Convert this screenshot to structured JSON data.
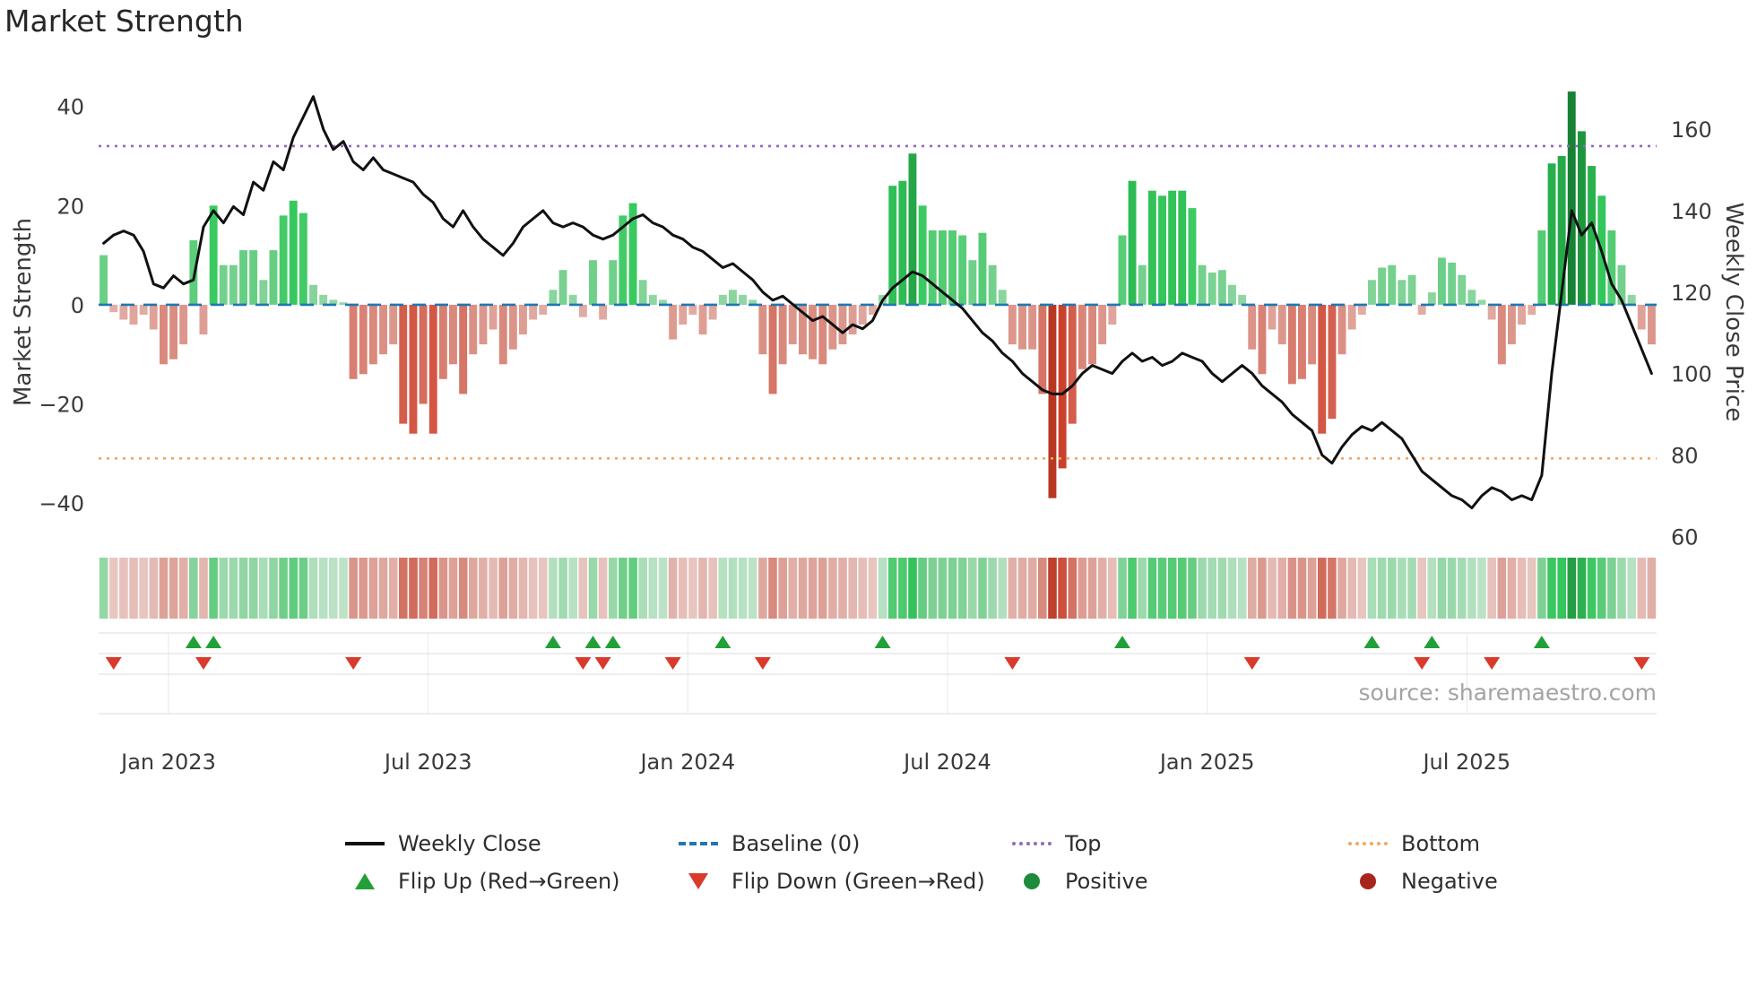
{
  "page_title": "Market Strength",
  "source": "source: sharemaestro.com",
  "colors": {
    "weekly_close_line": "#111111",
    "baseline": "#1f77b4",
    "top": "#9467bd",
    "bottom": "#f0a860",
    "flip_up": "#21a038",
    "flip_down": "#d93a2b",
    "positive_dot": "#1e8a3c",
    "negative_dot": "#a8251e",
    "bar_positive_dark": "#1d7a34",
    "bar_positive_light": "#b7e0b0",
    "bar_negative_dark": "#b03a30",
    "bar_negative_light": "#f5c6bd"
  },
  "legend": {
    "items": [
      {
        "label": "Weekly Close",
        "marker": "black-line"
      },
      {
        "label": "Baseline (0)",
        "marker": "blue-dashed-line"
      },
      {
        "label": "Top",
        "marker": "purple-dotted-line"
      },
      {
        "label": "Bottom",
        "marker": "orange-dotted-line"
      },
      {
        "label": "Flip Up (Red→Green)",
        "marker": "green-up-triangle"
      },
      {
        "label": "Flip Down (Green→Red)",
        "marker": "red-down-triangle"
      },
      {
        "label": "Positive",
        "marker": "green-circle"
      },
      {
        "label": "Negative",
        "marker": "dark-red-circle"
      }
    ]
  },
  "chart_data": {
    "type": "bar+line combo with sign-flip markers and heatmap strip",
    "title": "Market Strength",
    "x_unit": "weeks",
    "x_tick_labels": [
      "Jan 2023",
      "Jul 2023",
      "Jan 2024",
      "Jul 2024",
      "Jan 2025",
      "Jul 2025"
    ],
    "x_tick_week_index": [
      7,
      33,
      59,
      85,
      111,
      137
    ],
    "left_axis": {
      "label": "Market Strength",
      "tick_values": [
        -40,
        -20,
        0,
        20,
        40
      ],
      "tick_labels": [
        "−40",
        "−20",
        "0",
        "20",
        "40"
      ],
      "lim": [
        -49.2,
        46.1
      ]
    },
    "right_axis": {
      "label": "Weekly Close Price",
      "tick_values": [
        60,
        80,
        100,
        120,
        140,
        160
      ],
      "tick_labels": [
        "60",
        "80",
        "100",
        "120",
        "140",
        "160"
      ],
      "lim": [
        57,
        173
      ]
    },
    "baseline": 0,
    "top_level": 32,
    "bottom_level": -31,
    "flip_rule": "marker where weekly bar sign changes; up = red to green, down = green to red",
    "series": [
      {
        "name": "Market Strength",
        "type": "bar",
        "axis": "left",
        "values": [
          10,
          -1.5,
          -3,
          -4,
          -2,
          -5,
          -12,
          -11,
          -8,
          13,
          -6,
          20,
          8,
          8,
          11,
          11,
          5,
          11,
          18,
          21,
          18.5,
          4,
          2,
          1,
          0.5,
          -15,
          -14,
          -12,
          -10,
          -8,
          -24,
          -26,
          -20,
          -26,
          -15,
          -12,
          -18,
          -10,
          -8,
          -5,
          -12,
          -9,
          -6,
          -3,
          -2,
          3,
          7,
          2,
          -2.5,
          9,
          -3,
          9,
          18,
          20.5,
          5,
          2,
          1,
          -7,
          -4,
          -2,
          -6,
          -3,
          2,
          3,
          2,
          1,
          -10,
          -18,
          -12,
          -8,
          -10,
          -11,
          -12,
          -9,
          -8,
          -6,
          -4,
          -2,
          2,
          24,
          25,
          30.5,
          20,
          15,
          15,
          15,
          14,
          9,
          14.5,
          8,
          3,
          -8,
          -9,
          -9,
          -18,
          -39,
          -33,
          -24,
          -13,
          -12,
          -8,
          -4,
          14,
          25,
          8,
          23,
          22,
          23,
          23,
          19.5,
          8,
          6.5,
          7,
          4,
          2,
          -9,
          -14,
          -5,
          -8,
          -16,
          -15,
          -12,
          -26,
          -23,
          -10,
          -5,
          -2,
          5,
          7.5,
          8,
          5,
          6,
          -2,
          2.5,
          9.5,
          8.5,
          6,
          3,
          1,
          -3,
          -12,
          -8,
          -4,
          -2,
          15,
          28.5,
          30,
          43,
          35,
          28,
          22,
          15,
          8,
          2,
          -5,
          -8
        ]
      },
      {
        "name": "Weekly Close",
        "type": "line",
        "axis": "right",
        "values": [
          132,
          134,
          135,
          134,
          130,
          122,
          121,
          124,
          122,
          123,
          136,
          140,
          137,
          141,
          139,
          147,
          145,
          152,
          150,
          158,
          163,
          168,
          160,
          155,
          157,
          152,
          150,
          153,
          150,
          149,
          148,
          147,
          144,
          142,
          138,
          136,
          140,
          136,
          133,
          131,
          129,
          132,
          136,
          138,
          140,
          137,
          136,
          137,
          136,
          134,
          133,
          134,
          136,
          138,
          139,
          137,
          136,
          134,
          133,
          131,
          130,
          128,
          126,
          127,
          125,
          123,
          120,
          118,
          119,
          117,
          115,
          113,
          114,
          112,
          110,
          112,
          111,
          113,
          118,
          121,
          123,
          125,
          124,
          122,
          120,
          118,
          116,
          113,
          110,
          108,
          105,
          103,
          100,
          98,
          96,
          95,
          95,
          97,
          100,
          102,
          101,
          100,
          103,
          105,
          103,
          104,
          102,
          103,
          105,
          104,
          103,
          100,
          98,
          100,
          102,
          100,
          97,
          95,
          93,
          90,
          88,
          86,
          80,
          78,
          82,
          85,
          87,
          86,
          88,
          86,
          84,
          80,
          76,
          74,
          72,
          70,
          69,
          67,
          70,
          72,
          71,
          69,
          70,
          69,
          75,
          100,
          120,
          140,
          134,
          137,
          130,
          122,
          118,
          112,
          106,
          100
        ]
      }
    ]
  }
}
